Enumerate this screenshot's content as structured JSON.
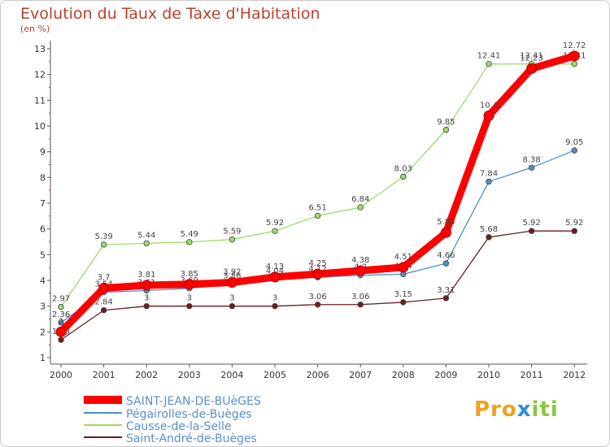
{
  "title": "Evolution du Taux de Taxe d'Habitation",
  "subtitle": "(en %)",
  "logo": {
    "p1": "Pro",
    "p2": "x",
    "p3": "iti"
  },
  "chart_data": {
    "type": "line",
    "x": [
      "2000",
      "2001",
      "2002",
      "2003",
      "2004",
      "2005",
      "2006",
      "2007",
      "2008",
      "2009",
      "2010",
      "2011",
      "2012"
    ],
    "ylim": [
      1,
      13
    ],
    "yticks": [
      "1",
      "2",
      "3",
      "4",
      "5",
      "6",
      "7",
      "8",
      "9",
      "10",
      "11",
      "12",
      "13"
    ],
    "grid": false,
    "legend_position": "bottom-left",
    "series": [
      {
        "name": "SAINT-JEAN-DE-BUèGES",
        "color": "#ff0000",
        "values": [
          2,
          3.7,
          3.81,
          3.85,
          3.92,
          4.13,
          4.25,
          4.38,
          4.51,
          5.86,
          10.4,
          12.23,
          12.72
        ]
      },
      {
        "name": "Pégairolles-de-Buèges",
        "color": "#4f8fc6",
        "values": [
          2.36,
          3.54,
          3.61,
          3.69,
          3.86,
          4.04,
          4.12,
          4.2,
          4.24,
          4.66,
          7.84,
          8.38,
          9.05
        ]
      },
      {
        "name": "Causse-de-la-Selle",
        "color": "#9ddc6c",
        "values": [
          2.97,
          5.39,
          5.44,
          5.49,
          5.59,
          5.92,
          6.51,
          6.84,
          8.03,
          9.85,
          12.41,
          12.41,
          12.41
        ]
      },
      {
        "name": "Saint-André-de-Buèges",
        "color": "#6b1e1e",
        "values": [
          1.69,
          2.84,
          3,
          3,
          3,
          3,
          3.06,
          3.06,
          3.15,
          3.31,
          5.68,
          5.92,
          5.92
        ]
      }
    ]
  }
}
